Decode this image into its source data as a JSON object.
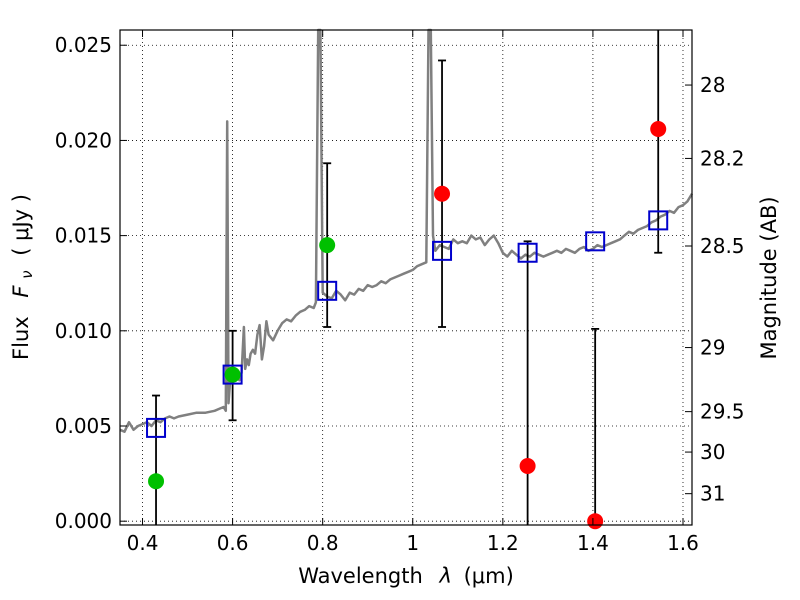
{
  "chart_data": {
    "type": "scatter",
    "xlabel_prefix": "Wavelength",
    "xlabel_symbol": "λ",
    "xlabel_unit": "(μm)",
    "ylabel_prefix": "Flux",
    "ylabel_symbol": "F",
    "ylabel_sub": "ν",
    "ylabel_unit": "( μJy )",
    "y2label": "Magnitude (AB)",
    "xlim": [
      0.35,
      1.62
    ],
    "ylim": [
      -0.0002,
      0.0258
    ],
    "xticks": [
      0.4,
      0.6,
      0.8,
      1.0,
      1.2,
      1.4,
      1.6
    ],
    "xtick_labels": [
      "0.4",
      "0.6",
      "0.8",
      "1",
      "1.2",
      "1.4",
      "1.6"
    ],
    "yticks": [
      0.0,
      0.005,
      0.01,
      0.015,
      0.02,
      0.025
    ],
    "ytick_labels": [
      "0.000",
      "0.005",
      "0.010",
      "0.015",
      "0.020",
      "0.025"
    ],
    "mag_ticks": [
      28,
      28.2,
      28.5,
      29,
      29.5,
      30,
      31
    ],
    "mag_tick_labels": [
      "28",
      "28.2",
      "28.5",
      "29",
      "29.5",
      "30",
      "31"
    ],
    "grid": true,
    "spectrum": {
      "color": "#808080",
      "points": [
        [
          0.35,
          0.0048
        ],
        [
          0.36,
          0.0047
        ],
        [
          0.37,
          0.0052
        ],
        [
          0.38,
          0.0048
        ],
        [
          0.39,
          0.005
        ],
        [
          0.4,
          0.0051
        ],
        [
          0.41,
          0.0052
        ],
        [
          0.42,
          0.005
        ],
        [
          0.43,
          0.0053
        ],
        [
          0.44,
          0.0052
        ],
        [
          0.45,
          0.0054
        ],
        [
          0.46,
          0.0055
        ],
        [
          0.47,
          0.0054
        ],
        [
          0.48,
          0.0055
        ],
        [
          0.5,
          0.0056
        ],
        [
          0.52,
          0.0057
        ],
        [
          0.54,
          0.0057
        ],
        [
          0.56,
          0.0058
        ],
        [
          0.57,
          0.0059
        ],
        [
          0.58,
          0.006
        ],
        [
          0.585,
          0.0058
        ],
        [
          0.588,
          0.021
        ],
        [
          0.591,
          0.0062
        ],
        [
          0.595,
          0.0075
        ],
        [
          0.6,
          0.0073
        ],
        [
          0.605,
          0.0075
        ],
        [
          0.61,
          0.0076
        ],
        [
          0.615,
          0.0074
        ],
        [
          0.62,
          0.0078
        ],
        [
          0.625,
          0.0102
        ],
        [
          0.628,
          0.008
        ],
        [
          0.632,
          0.0085
        ],
        [
          0.636,
          0.0082
        ],
        [
          0.64,
          0.0088
        ],
        [
          0.645,
          0.009
        ],
        [
          0.65,
          0.0088
        ],
        [
          0.655,
          0.0098
        ],
        [
          0.66,
          0.0103
        ],
        [
          0.665,
          0.0085
        ],
        [
          0.67,
          0.0092
        ],
        [
          0.675,
          0.0105
        ],
        [
          0.68,
          0.0098
        ],
        [
          0.69,
          0.0095
        ],
        [
          0.7,
          0.01
        ],
        [
          0.71,
          0.0104
        ],
        [
          0.72,
          0.0106
        ],
        [
          0.73,
          0.0105
        ],
        [
          0.74,
          0.0108
        ],
        [
          0.75,
          0.011
        ],
        [
          0.76,
          0.0111
        ],
        [
          0.77,
          0.0113
        ],
        [
          0.78,
          0.0112
        ],
        [
          0.785,
          0.0115
        ],
        [
          0.79,
          0.0258
        ],
        [
          0.795,
          0.0258
        ],
        [
          0.8,
          0.012
        ],
        [
          0.81,
          0.0118
        ],
        [
          0.82,
          0.0117
        ],
        [
          0.83,
          0.0121
        ],
        [
          0.84,
          0.0119
        ],
        [
          0.85,
          0.0116
        ],
        [
          0.86,
          0.012
        ],
        [
          0.87,
          0.0119
        ],
        [
          0.88,
          0.0122
        ],
        [
          0.89,
          0.0121
        ],
        [
          0.9,
          0.0124
        ],
        [
          0.91,
          0.0123
        ],
        [
          0.92,
          0.0124
        ],
        [
          0.93,
          0.0126
        ],
        [
          0.94,
          0.0125
        ],
        [
          0.95,
          0.0127
        ],
        [
          0.96,
          0.0128
        ],
        [
          0.97,
          0.0129
        ],
        [
          0.98,
          0.013
        ],
        [
          0.99,
          0.0131
        ],
        [
          1.0,
          0.0132
        ],
        [
          1.01,
          0.0134
        ],
        [
          1.02,
          0.0135
        ],
        [
          1.03,
          0.0136
        ],
        [
          1.035,
          0.0258
        ],
        [
          1.04,
          0.0258
        ],
        [
          1.045,
          0.015
        ],
        [
          1.05,
          0.0142
        ],
        [
          1.06,
          0.0145
        ],
        [
          1.07,
          0.0144
        ],
        [
          1.08,
          0.0143
        ],
        [
          1.09,
          0.0148
        ],
        [
          1.1,
          0.0146
        ],
        [
          1.11,
          0.0147
        ],
        [
          1.12,
          0.0146
        ],
        [
          1.13,
          0.015
        ],
        [
          1.14,
          0.0148
        ],
        [
          1.15,
          0.0149
        ],
        [
          1.16,
          0.0145
        ],
        [
          1.17,
          0.0148
        ],
        [
          1.18,
          0.015
        ],
        [
          1.19,
          0.0146
        ],
        [
          1.2,
          0.0141
        ],
        [
          1.21,
          0.0139
        ],
        [
          1.22,
          0.0142
        ],
        [
          1.23,
          0.014
        ],
        [
          1.24,
          0.0138
        ],
        [
          1.25,
          0.014
        ],
        [
          1.26,
          0.0139
        ],
        [
          1.27,
          0.0141
        ],
        [
          1.28,
          0.014
        ],
        [
          1.29,
          0.0139
        ],
        [
          1.3,
          0.014
        ],
        [
          1.31,
          0.0141
        ],
        [
          1.32,
          0.0142
        ],
        [
          1.33,
          0.0141
        ],
        [
          1.34,
          0.0143
        ],
        [
          1.35,
          0.0142
        ],
        [
          1.36,
          0.0141
        ],
        [
          1.37,
          0.0143
        ],
        [
          1.38,
          0.0144
        ],
        [
          1.39,
          0.0142
        ],
        [
          1.4,
          0.0143
        ],
        [
          1.41,
          0.0145
        ],
        [
          1.42,
          0.0144
        ],
        [
          1.43,
          0.0145
        ],
        [
          1.44,
          0.0146
        ],
        [
          1.45,
          0.0147
        ],
        [
          1.46,
          0.0148
        ],
        [
          1.47,
          0.015
        ],
        [
          1.48,
          0.0152
        ],
        [
          1.49,
          0.0151
        ],
        [
          1.5,
          0.0153
        ],
        [
          1.51,
          0.0154
        ],
        [
          1.52,
          0.0155
        ],
        [
          1.53,
          0.0157
        ],
        [
          1.54,
          0.0158
        ],
        [
          1.55,
          0.016
        ],
        [
          1.56,
          0.0161
        ],
        [
          1.57,
          0.0163
        ],
        [
          1.58,
          0.0162
        ],
        [
          1.59,
          0.0165
        ],
        [
          1.6,
          0.0166
        ],
        [
          1.61,
          0.0168
        ],
        [
          1.62,
          0.0172
        ]
      ]
    },
    "series": [
      {
        "name": "",
        "marker": "open-square",
        "color": "#0000cc",
        "points": [
          {
            "x": 0.43,
            "y": 0.0049
          },
          {
            "x": 0.6,
            "y": 0.0077
          },
          {
            "x": 0.81,
            "y": 0.0121
          },
          {
            "x": 1.065,
            "y": 0.0142
          },
          {
            "x": 1.255,
            "y": 0.0141
          },
          {
            "x": 1.405,
            "y": 0.0147
          },
          {
            "x": 1.545,
            "y": 0.0158
          }
        ]
      },
      {
        "name": "",
        "marker": "filled-circle",
        "color": "#00c000",
        "points": [
          {
            "x": 0.43,
            "y": 0.0021
          },
          {
            "x": 0.6,
            "y": 0.0077
          },
          {
            "x": 0.81,
            "y": 0.0145
          }
        ]
      },
      {
        "name": "",
        "marker": "filled-circle",
        "color": "#ff0000",
        "points": [
          {
            "x": 1.065,
            "y": 0.0172
          },
          {
            "x": 1.255,
            "y": 0.0029
          },
          {
            "x": 1.405,
            "y": 0.0
          },
          {
            "x": 1.545,
            "y": 0.0206
          }
        ]
      }
    ],
    "errorbars": [
      {
        "x": 0.43,
        "low": -0.0002,
        "high": 0.0066
      },
      {
        "x": 0.6,
        "low": 0.0053,
        "high": 0.01
      },
      {
        "x": 0.81,
        "low": 0.0102,
        "high": 0.0188
      },
      {
        "x": 1.065,
        "low": 0.0102,
        "high": 0.0242
      },
      {
        "x": 1.255,
        "low": -0.0002,
        "high": 0.0147
      },
      {
        "x": 1.405,
        "low": -0.0002,
        "high": 0.0101
      },
      {
        "x": 1.545,
        "low": 0.0141,
        "high": 0.0258
      }
    ]
  }
}
